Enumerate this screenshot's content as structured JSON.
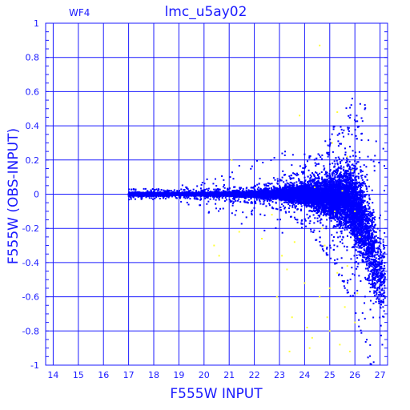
{
  "chart_data": {
    "type": "scatter",
    "title": "lmc_u5ay02",
    "panel_label": "WF4",
    "xlabel": "F555W INPUT",
    "ylabel": "F555W (OBS-INPUT)",
    "xlim": [
      13.7,
      27.3
    ],
    "ylim": [
      -1,
      1
    ],
    "x_ticks": [
      14,
      15,
      16,
      17,
      18,
      19,
      20,
      21,
      22,
      23,
      24,
      25,
      26,
      27
    ],
    "y_ticks": [
      1,
      0.8,
      0.6,
      0.4,
      0.2,
      0,
      -0.2,
      -0.4,
      -0.6,
      -0.8,
      -1
    ],
    "grid": true,
    "colors": {
      "axis": "#1a1aff",
      "grid": "#1a1aff",
      "main_points": "#0000ff",
      "highlight_points": "#ffff33"
    },
    "series": [
      {
        "color": "blue",
        "envelope": [
          {
            "x": 17.0,
            "lo": -0.02,
            "hi": 0.02,
            "density": 1.0
          },
          {
            "x": 18.0,
            "lo": -0.02,
            "hi": 0.02,
            "density": 1.0
          },
          {
            "x": 19.0,
            "lo": -0.015,
            "hi": 0.015,
            "density": 0.8
          },
          {
            "x": 20.0,
            "lo": -0.02,
            "hi": 0.02,
            "density": 0.9
          },
          {
            "x": 21.0,
            "lo": -0.025,
            "hi": 0.025,
            "density": 1.0
          },
          {
            "x": 22.0,
            "lo": -0.035,
            "hi": 0.035,
            "density": 1.2
          },
          {
            "x": 23.0,
            "lo": -0.06,
            "hi": 0.06,
            "density": 1.5
          },
          {
            "x": 24.0,
            "lo": -0.12,
            "hi": 0.12,
            "density": 2.0
          },
          {
            "x": 25.0,
            "lo": -0.25,
            "hi": 0.22,
            "density": 2.6
          },
          {
            "x": 25.8,
            "lo": -0.4,
            "hi": 0.35,
            "density": 3.0
          },
          {
            "x": 26.3,
            "lo": -0.6,
            "hi": 0.3,
            "density": 2.0
          },
          {
            "x": 26.8,
            "lo": -0.85,
            "hi": 0.1,
            "density": 1.0
          },
          {
            "x": 27.2,
            "lo": -1.0,
            "hi": 0.0,
            "density": 0.4
          }
        ]
      },
      {
        "color": "yellow",
        "points": [
          [
            20.4,
            -0.3
          ],
          [
            20.6,
            -0.36
          ],
          [
            21.1,
            0.2
          ],
          [
            21.4,
            -0.22
          ],
          [
            22.3,
            -0.26
          ],
          [
            22.7,
            -0.12
          ],
          [
            23.1,
            -0.36
          ],
          [
            23.3,
            -0.44
          ],
          [
            23.6,
            -0.28
          ],
          [
            23.8,
            0.46
          ],
          [
            24.0,
            -0.52
          ],
          [
            24.1,
            -0.78
          ],
          [
            24.3,
            -0.84
          ],
          [
            24.4,
            0.04
          ],
          [
            24.6,
            -0.6
          ],
          [
            24.8,
            -0.3
          ],
          [
            24.9,
            -0.72
          ],
          [
            25.0,
            -0.8
          ],
          [
            25.1,
            0.3
          ],
          [
            25.2,
            -0.1
          ],
          [
            25.3,
            -0.46
          ],
          [
            25.4,
            -0.88
          ],
          [
            25.5,
            0.02
          ],
          [
            25.6,
            -0.66
          ],
          [
            25.7,
            -0.42
          ],
          [
            25.8,
            -0.92
          ],
          [
            25.9,
            0.14
          ],
          [
            26.0,
            -0.1
          ],
          [
            26.1,
            -0.58
          ],
          [
            26.2,
            -0.25
          ],
          [
            23.5,
            -0.72
          ],
          [
            24.2,
            -0.9
          ],
          [
            24.6,
            0.87
          ],
          [
            25.3,
            0.48
          ],
          [
            25.0,
            -0.55
          ],
          [
            22.9,
            -0.6
          ],
          [
            23.4,
            -0.92
          ],
          [
            24.7,
            -0.2
          ],
          [
            25.7,
            0.22
          ],
          [
            26.0,
            -0.75
          ]
        ]
      }
    ]
  }
}
